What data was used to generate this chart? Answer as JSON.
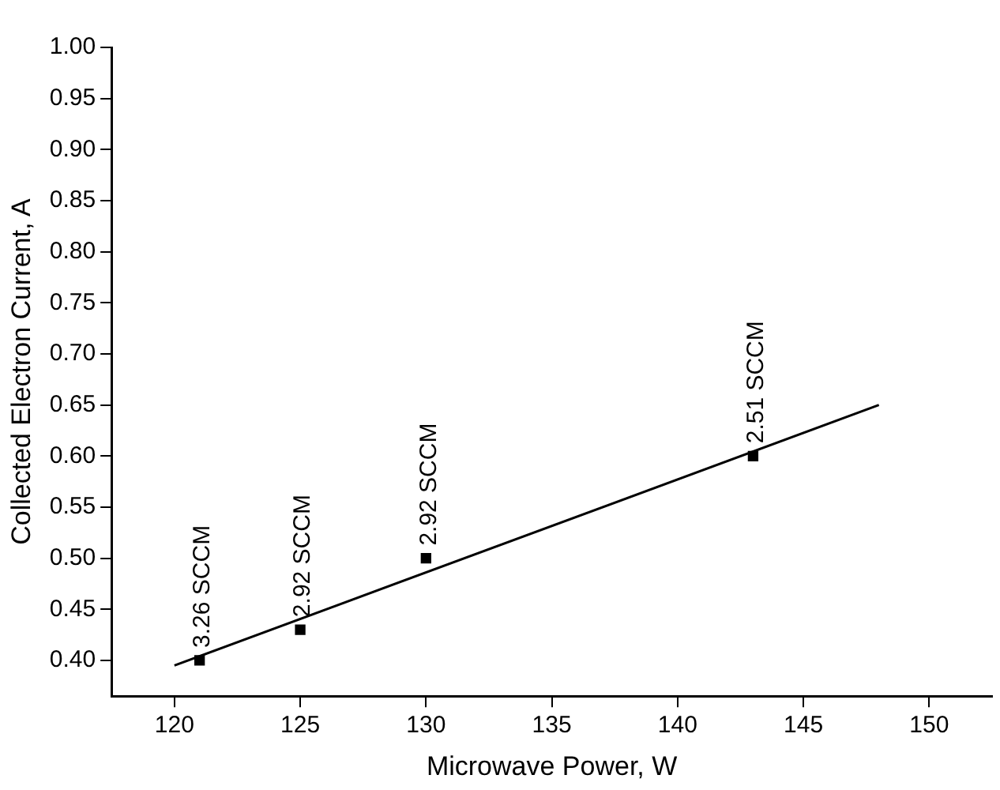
{
  "chart_data": {
    "type": "scatter",
    "xlabel": "Microwave Power, W",
    "ylabel": "Collected Electron Current, A",
    "xlim": [
      117.5,
      152.5
    ],
    "xticks": [
      120,
      125,
      130,
      135,
      140,
      145,
      150
    ],
    "ylim": [
      0.365,
      1.0
    ],
    "yticks": [
      {
        "value": 0.4,
        "label": "0.40"
      },
      0.45,
      {
        "value": 0.5,
        "label": "0.50"
      },
      0.55,
      {
        "value": 0.6,
        "label": "0.60"
      },
      0.65,
      {
        "value": 0.7,
        "label": "0.70"
      },
      0.75,
      {
        "value": 0.8,
        "label": "0.80"
      },
      0.85,
      {
        "value": 0.9,
        "label": "0.90"
      },
      0.95,
      {
        "value": 1.0,
        "label": "1.00"
      }
    ],
    "grid": false,
    "legend": false,
    "marker": "square",
    "series": [
      {
        "type": "scatter",
        "color": "#000000",
        "x": [
          121,
          125,
          130,
          143
        ],
        "values": [
          0.4,
          0.43,
          0.5,
          0.6
        ]
      },
      {
        "type": "line",
        "color": "#000000",
        "x": [
          120,
          148
        ],
        "values": [
          0.395,
          0.65
        ],
        "line_style": "solid",
        "marker": "none"
      }
    ],
    "annotations": [
      {
        "text": "3.26 SCCM",
        "x": 121,
        "y": 0.4
      },
      {
        "text": "2.92 SCCM",
        "x": 125,
        "y": 0.43
      },
      {
        "text": "2.92 SCCM",
        "x": 130,
        "y": 0.5
      },
      {
        "text": "2.51 SCCM",
        "x": 143,
        "y": 0.6
      }
    ]
  }
}
